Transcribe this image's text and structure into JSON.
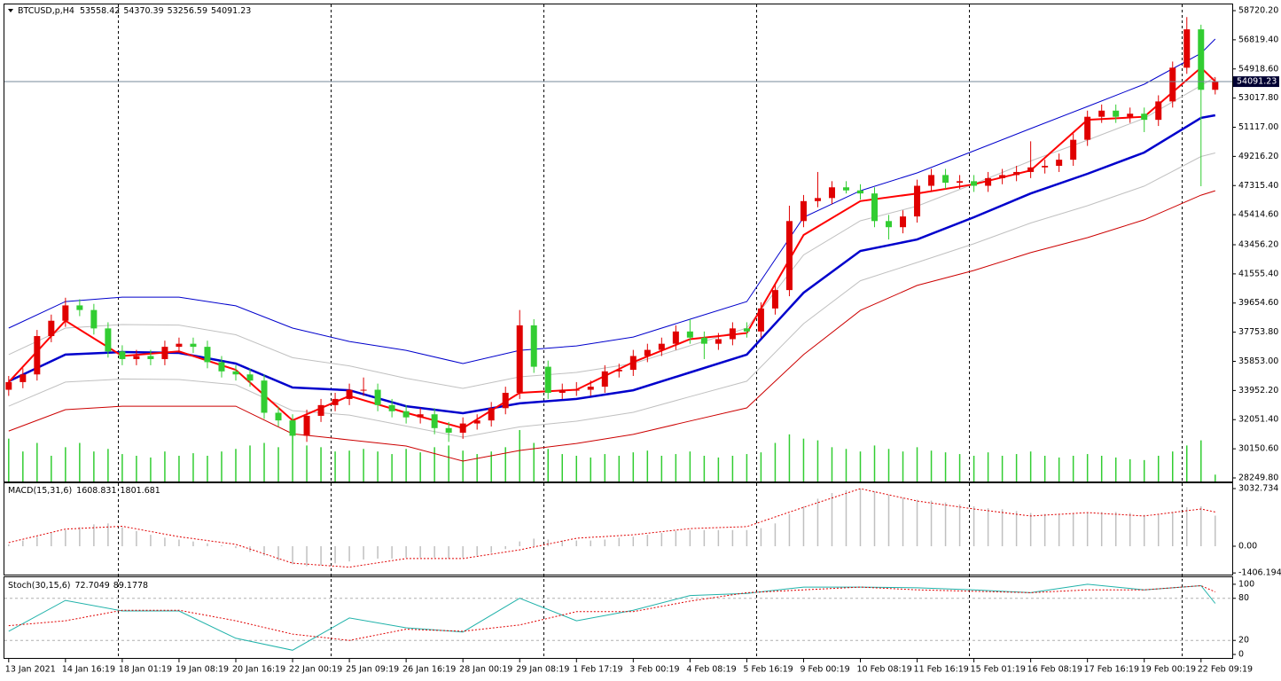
{
  "chart_data": [
    {
      "type": "candlestick",
      "symbol": "BTCUSD,p,H4",
      "up_color": "#e00000",
      "down_color": "#32cd32",
      "volume_color": "#32cd32",
      "xlim": [
        -0.3,
        86.2
      ],
      "xticks": [
        {
          "value": 0,
          "label": "13 Jan 2021"
        },
        {
          "value": 4,
          "label": "14 Jan 16:19"
        },
        {
          "value": 8,
          "label": "18 Jan 01:19"
        },
        {
          "value": 12,
          "label": "19 Jan 08:19"
        },
        {
          "value": 16,
          "label": "20 Jan 16:19"
        },
        {
          "value": 20,
          "label": "22 Jan 00:19"
        },
        {
          "value": 24,
          "label": "25 Jan 09:19"
        },
        {
          "value": 28,
          "label": "26 Jan 16:19"
        },
        {
          "value": 32,
          "label": "28 Jan 00:19"
        },
        {
          "value": 36,
          "label": "29 Jan 08:19"
        },
        {
          "value": 40,
          "label": "1 Feb 17:19"
        },
        {
          "value": 44,
          "label": "3 Feb 00:19"
        },
        {
          "value": 48,
          "label": "4 Feb 08:19"
        },
        {
          "value": 52,
          "label": "5 Feb 16:19"
        },
        {
          "value": 56,
          "label": "9 Feb 00:19"
        },
        {
          "value": 60,
          "label": "10 Feb 08:19"
        },
        {
          "value": 64,
          "label": "11 Feb 16:19"
        },
        {
          "value": 68,
          "label": "15 Feb 01:19"
        },
        {
          "value": 72,
          "label": "16 Feb 08:19"
        },
        {
          "value": 76,
          "label": "17 Feb 16:19"
        },
        {
          "value": 80,
          "label": "19 Feb 00:19"
        },
        {
          "value": 84,
          "label": "22 Feb 09:19"
        }
      ],
      "ylim": [
        28018.5,
        59125
      ],
      "yticks": [
        {
          "value": 58720.2,
          "label": "58720.20"
        },
        {
          "value": 56819.4,
          "label": "56819.40"
        },
        {
          "value": 54918.6,
          "label": "54918.60"
        },
        {
          "value": 53017.8,
          "label": "53017.80"
        },
        {
          "value": 51117,
          "label": "51117.00"
        },
        {
          "value": 49216.2,
          "label": "49216.20"
        },
        {
          "value": 47315.4,
          "label": "47315.40"
        },
        {
          "value": 45414.6,
          "label": "45414.60"
        },
        {
          "value": 43456.2,
          "label": "43456.20"
        },
        {
          "value": 41555.4,
          "label": "41555.40"
        },
        {
          "value": 39654.6,
          "label": "39654.60"
        },
        {
          "value": 37753.8,
          "label": "37753.80"
        },
        {
          "value": 35853,
          "label": "35853.00"
        },
        {
          "value": 33952.2,
          "label": "33952.20"
        },
        {
          "value": 32051.4,
          "label": "32051.40"
        },
        {
          "value": 30150.6,
          "label": "30150.60"
        },
        {
          "value": 28249.8,
          "label": "28249.80"
        }
      ],
      "open": [
        34000,
        34500,
        35000,
        37500,
        38500,
        39500,
        39200,
        38000,
        36500,
        36000,
        36200,
        36000,
        36800,
        37000,
        36800,
        35800,
        35200,
        35000,
        34600,
        32500,
        32000,
        31000,
        32300,
        33000,
        33400,
        34000,
        34000,
        33000,
        32600,
        32200,
        32400,
        31500,
        31200,
        31800,
        32000,
        32800,
        33800,
        38200,
        35500,
        33800,
        34000,
        34000,
        34200,
        35200,
        35300,
        36200,
        36600,
        37000,
        37800,
        37400,
        37000,
        37300,
        38000,
        37800,
        39300,
        40500,
        45000,
        46300,
        46500,
        47200,
        47000,
        46800,
        45000,
        44600,
        45300,
        47300,
        48000,
        47500,
        47600,
        47300,
        47800,
        48000,
        48200,
        48500,
        48600,
        49000,
        50300,
        51800,
        52200,
        51800,
        52000,
        51600,
        52800,
        55000,
        57500,
        53558.42
      ],
      "high": [
        34900,
        35400,
        37900,
        38900,
        40000,
        39900,
        39600,
        38400,
        36900,
        36600,
        36600,
        37200,
        37400,
        37400,
        37200,
        36200,
        35600,
        35400,
        35000,
        32900,
        32400,
        32700,
        33400,
        33800,
        34400,
        34800,
        34400,
        33400,
        33000,
        32800,
        32800,
        31900,
        32200,
        32400,
        33200,
        34200,
        39200,
        38600,
        35900,
        34400,
        34500,
        34600,
        35600,
        35700,
        36600,
        37000,
        37400,
        38200,
        38600,
        37800,
        37700,
        38400,
        38400,
        39700,
        40900,
        46000,
        46700,
        48200,
        47600,
        47600,
        47400,
        47200,
        45400,
        45700,
        47700,
        48400,
        48400,
        48000,
        48000,
        48200,
        48400,
        48600,
        50200,
        49000,
        49400,
        50700,
        52200,
        52600,
        52600,
        52400,
        52400,
        53200,
        55400,
        58300,
        57800,
        54370.39
      ],
      "low": [
        33600,
        34100,
        34600,
        37100,
        38100,
        38800,
        37600,
        36100,
        35600,
        35600,
        35600,
        35600,
        36400,
        36400,
        35400,
        34800,
        34600,
        34200,
        32100,
        31600,
        30400,
        30600,
        31900,
        32600,
        33000,
        33600,
        32600,
        32200,
        31800,
        31800,
        31100,
        30600,
        30800,
        31400,
        31600,
        32400,
        33400,
        35100,
        33400,
        33400,
        33600,
        33600,
        33800,
        34800,
        34900,
        35800,
        36200,
        36600,
        37000,
        36000,
        36600,
        36900,
        37400,
        37400,
        38900,
        40100,
        44600,
        45900,
        46100,
        46800,
        46400,
        44600,
        43800,
        44200,
        44900,
        46900,
        47100,
        47100,
        46900,
        46900,
        47400,
        47600,
        47800,
        48100,
        48200,
        48600,
        49900,
        51400,
        51400,
        51400,
        50800,
        51200,
        52400,
        54600,
        47270,
        53256.59
      ],
      "close": [
        34500,
        35000,
        37500,
        38500,
        39500,
        39200,
        38000,
        36500,
        36000,
        36200,
        36000,
        36800,
        37000,
        36800,
        35800,
        35200,
        35000,
        34600,
        32500,
        32000,
        31000,
        32300,
        33000,
        33400,
        34000,
        34000,
        33000,
        32600,
        32200,
        32400,
        31500,
        31200,
        31800,
        32000,
        32800,
        33800,
        38200,
        35500,
        33800,
        34000,
        34000,
        34200,
        35200,
        35300,
        36200,
        36600,
        37000,
        37800,
        37400,
        37000,
        37300,
        38000,
        37800,
        39300,
        40500,
        45000,
        46300,
        46500,
        47200,
        47000,
        46800,
        45000,
        44600,
        45300,
        47300,
        48000,
        47500,
        47600,
        47300,
        47800,
        48000,
        48200,
        48500,
        48600,
        49000,
        50300,
        51800,
        52200,
        51800,
        52000,
        51600,
        52800,
        55000,
        57500,
        53558.42,
        54091.23
      ],
      "volume": [
        50,
        35,
        45,
        30,
        40,
        45,
        35,
        38,
        32,
        30,
        28,
        35,
        30,
        33,
        30,
        35,
        38,
        42,
        45,
        40,
        55,
        42,
        40,
        35,
        36,
        38,
        35,
        32,
        38,
        34,
        40,
        42,
        36,
        32,
        35,
        40,
        60,
        45,
        38,
        32,
        30,
        28,
        32,
        30,
        34,
        36,
        30,
        32,
        35,
        30,
        28,
        30,
        32,
        34,
        45,
        55,
        50,
        48,
        40,
        38,
        35,
        42,
        38,
        35,
        40,
        36,
        34,
        32,
        30,
        34,
        30,
        32,
        35,
        30,
        28,
        30,
        32,
        30,
        28,
        26,
        25,
        30,
        35,
        42,
        48,
        8
      ],
      "line_x": [
        0,
        4,
        8,
        12,
        16,
        20,
        24,
        28,
        32,
        36,
        40,
        44,
        48,
        52,
        56,
        60,
        64,
        68,
        72,
        76,
        80,
        84,
        85
      ],
      "series": [
        {
          "color": "#c0c0c0",
          "width": 1,
          "values": [
            36290,
            38020,
            38250,
            38220,
            37590,
            36090,
            35560,
            34750,
            34090,
            34840,
            35130,
            35710,
            36870,
            38020,
            42790,
            45020,
            45970,
            47420,
            48920,
            50280,
            51700,
            53840,
            54390
          ]
        },
        {
          "color": "#c0c0c0",
          "width": 1,
          "values": [
            32930,
            34500,
            34700,
            34670,
            34320,
            32640,
            32350,
            31630,
            30910,
            31580,
            31950,
            32530,
            33550,
            34560,
            38310,
            41110,
            42300,
            43520,
            44870,
            46000,
            47280,
            49210,
            49440
          ]
        },
        {
          "color": "#0000cc",
          "width": 1,
          "values": [
            38020,
            39750,
            40040,
            40040,
            39470,
            38020,
            37150,
            36570,
            35710,
            36570,
            36860,
            37440,
            38600,
            39750,
            45250,
            46980,
            48140,
            49580,
            51030,
            52470,
            53920,
            55940,
            56870
          ]
        },
        {
          "color": "#cc0000",
          "width": 1,
          "values": [
            31310,
            32700,
            32930,
            32930,
            32930,
            31130,
            30730,
            30330,
            29350,
            30040,
            30500,
            31090,
            31960,
            32820,
            36290,
            39170,
            40800,
            41780,
            42940,
            43920,
            45080,
            46690,
            46980
          ]
        },
        {
          "color": "#0000cc",
          "width": 2.5,
          "values": [
            34550,
            36290,
            36460,
            36400,
            35710,
            34150,
            33970,
            32930,
            32470,
            33110,
            33400,
            33970,
            35130,
            36290,
            40330,
            43050,
            43800,
            45250,
            46800,
            48080,
            49470,
            51730,
            51900
          ]
        },
        {
          "color": "#ff0000",
          "width": 2,
          "values": [
            34500,
            38500,
            36200,
            36500,
            35300,
            32000,
            33600,
            32500,
            31500,
            33800,
            34000,
            35800,
            37300,
            37700,
            44090,
            46300,
            46800,
            47400,
            48300,
            51600,
            51800,
            55000,
            54100
          ]
        }
      ]
    },
    {
      "type": "macd",
      "title": "MACD(15,31,6)",
      "ylim": [
        -1493,
        3313
      ],
      "yticks": [
        3032.734,
        {
          "value": 0,
          "label": "0.00"
        },
        -1406.194
      ],
      "histogram": {
        "color": "#c0c0c0",
        "values": [
          100,
          300,
          500,
          700,
          850,
          1000,
          1150,
          1200,
          1000,
          800,
          600,
          450,
          350,
          250,
          150,
          50,
          -100,
          -300,
          -500,
          -750,
          -950,
          -1050,
          -1000,
          -900,
          -800,
          -700,
          -650,
          -650,
          -600,
          -600,
          -600,
          -650,
          -600,
          -500,
          -350,
          -150,
          250,
          400,
          350,
          300,
          300,
          300,
          350,
          450,
          500,
          600,
          700,
          800,
          850,
          850,
          850,
          850,
          850,
          950,
          1200,
          1700,
          2100,
          2500,
          2800,
          2950,
          3030,
          2900,
          2700,
          2550,
          2450,
          2400,
          2300,
          2200,
          2100,
          2000,
          1950,
          1850,
          1750,
          1700,
          1700,
          1700,
          1750,
          1800,
          1800,
          1750,
          1650,
          1650,
          1800,
          2050,
          2100,
          1608.831
        ]
      },
      "signal": {
        "color": "#e00000",
        "x": [
          0,
          4,
          8,
          12,
          16,
          20,
          24,
          28,
          32,
          36,
          40,
          44,
          48,
          52,
          56,
          60,
          64,
          68,
          72,
          76,
          80,
          84,
          85
        ],
        "values": [
          190,
          900,
          1050,
          500,
          100,
          -890,
          -1100,
          -650,
          -650,
          -190,
          420,
          600,
          930,
          1030,
          2050,
          3030,
          2380,
          1960,
          1590,
          1770,
          1590,
          1960,
          1801.681
        ]
      }
    },
    {
      "type": "stochastic",
      "title": "Stoch(30,15,6)",
      "ylim": [
        -5,
        110
      ],
      "yticks": [
        100,
        80,
        20,
        0
      ],
      "levels": [
        20,
        80
      ],
      "x": [
        0,
        4,
        8,
        12,
        16,
        20,
        24,
        28,
        32,
        36,
        40,
        44,
        48,
        52,
        56,
        60,
        64,
        68,
        72,
        76,
        80,
        84,
        85
      ],
      "main": {
        "color": "#20b2aa",
        "values": [
          33,
          77,
          62,
          62,
          23,
          6,
          52,
          38,
          32,
          80,
          48,
          63,
          84,
          87,
          96,
          96,
          95,
          92,
          88,
          100,
          92,
          98,
          72.7049
        ]
      },
      "signal": {
        "color": "#e00000",
        "values": [
          41,
          48,
          63,
          63,
          48,
          29,
          20,
          36,
          33,
          42,
          61,
          61,
          76,
          88,
          92,
          96,
          92,
          90,
          88,
          92,
          92,
          98,
          89.1778
        ]
      }
    }
  ]
}
